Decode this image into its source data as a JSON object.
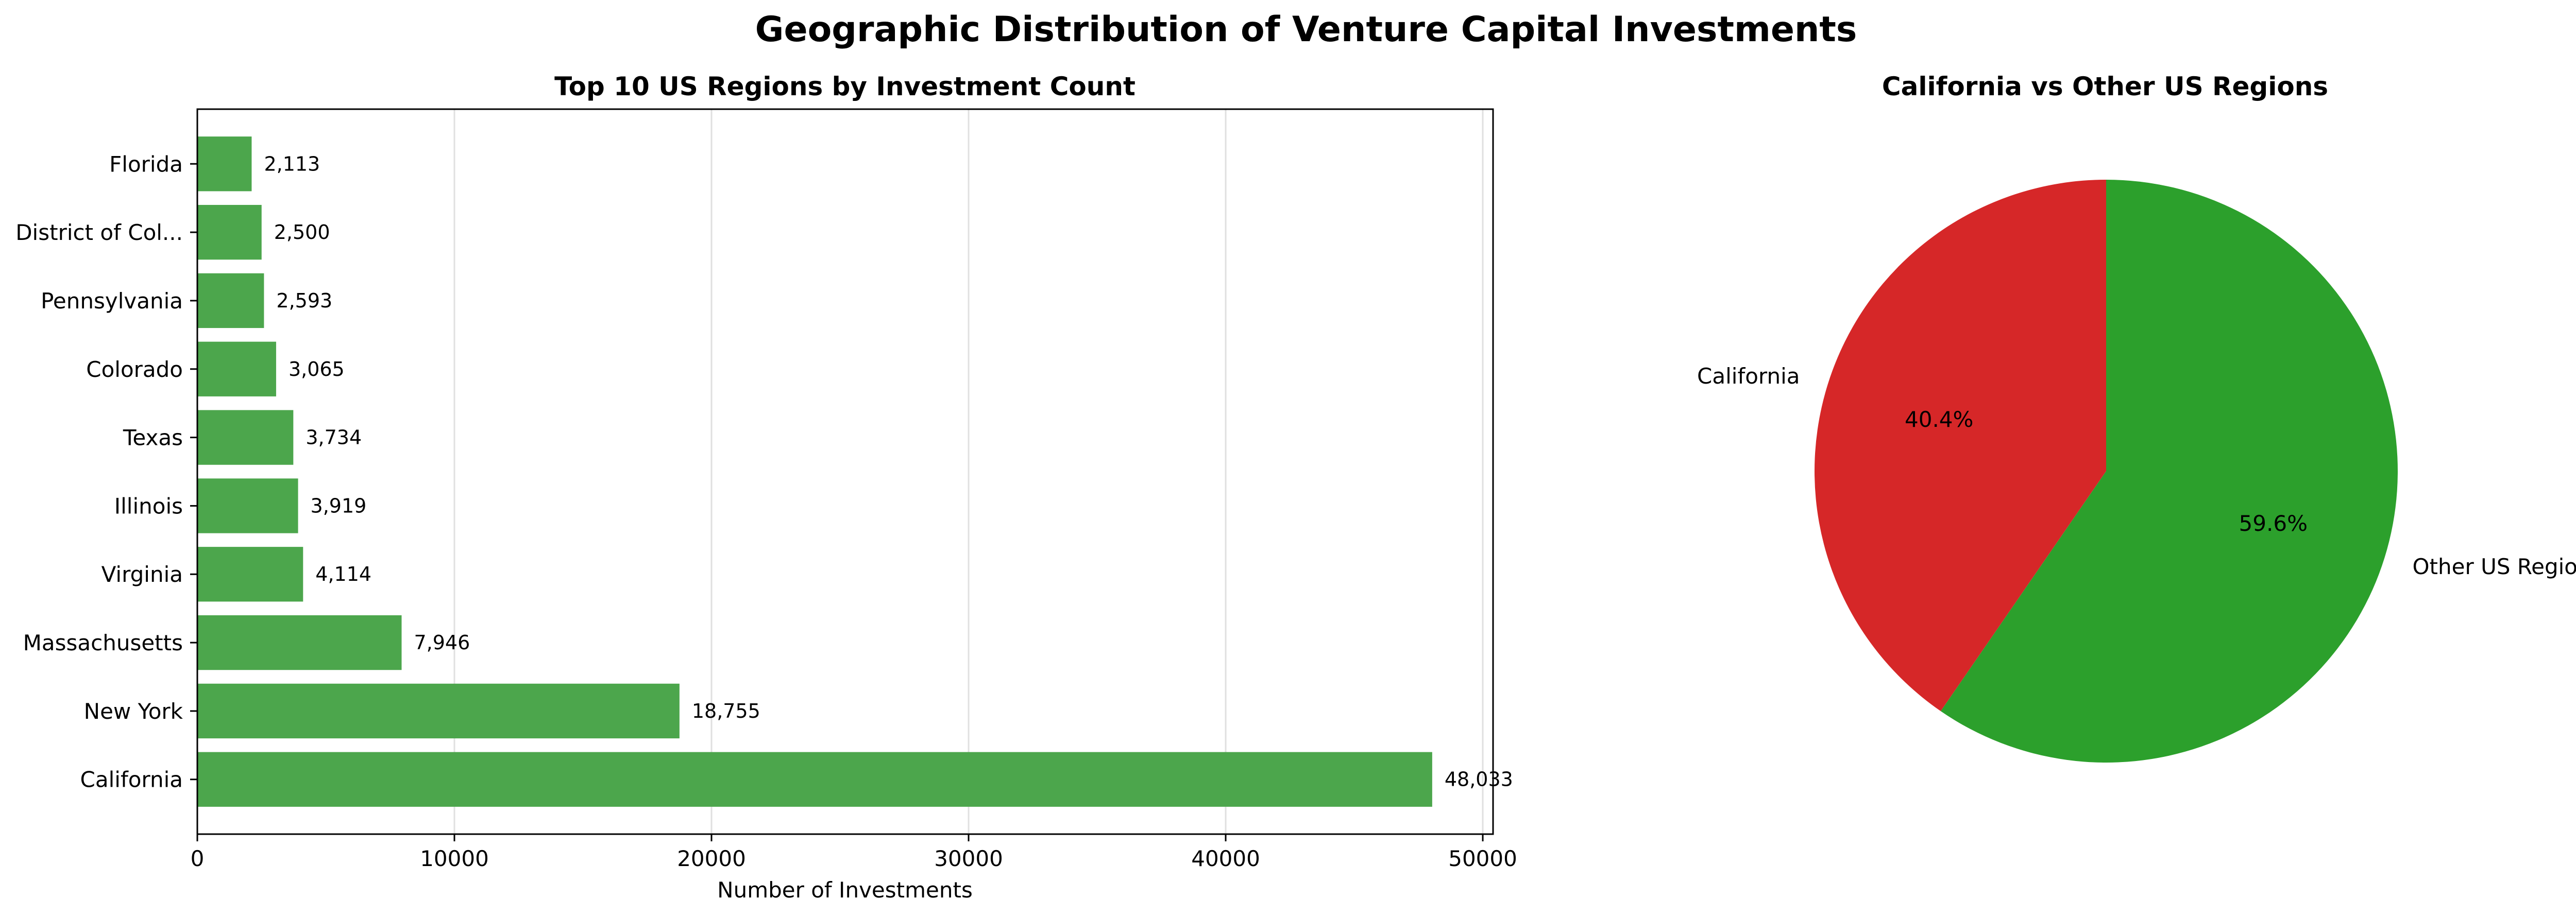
{
  "title": "Geographic Distribution of Venture Capital Investments",
  "chart_data": [
    {
      "type": "bar",
      "orientation": "horizontal",
      "title": "Top 10 US Regions by Investment Count",
      "xlabel": "Number of Investments",
      "ylabel": "",
      "categories": [
        "California",
        "New York",
        "Massachusetts",
        "Virginia",
        "Illinois",
        "Texas",
        "Colorado",
        "Pennsylvania",
        "District of Col...",
        "Florida"
      ],
      "values": [
        48033,
        18755,
        7946,
        4114,
        3919,
        3734,
        3065,
        2593,
        2500,
        2113
      ],
      "value_labels": [
        "48,033",
        "18,755",
        "7,946",
        "4,114",
        "3,919",
        "3,734",
        "3,065",
        "2,593",
        "2,500",
        "2,113"
      ],
      "xlim": [
        0,
        50400
      ],
      "xticks": [
        0,
        10000,
        20000,
        30000,
        40000,
        50000
      ],
      "xtick_labels": [
        "0",
        "10000",
        "20000",
        "30000",
        "40000",
        "50000"
      ],
      "grid": "x",
      "bar_color": "#4ca64c"
    },
    {
      "type": "pie",
      "title": "California vs Other US Regions",
      "labels": [
        "California",
        "Other US Regions"
      ],
      "values": [
        40.4,
        59.6
      ],
      "pct_labels": [
        "40.4%",
        "59.6%"
      ],
      "colors": [
        "#d62728",
        "#2ca02c"
      ],
      "start_angle": 90,
      "direction": "counterclockwise"
    }
  ]
}
